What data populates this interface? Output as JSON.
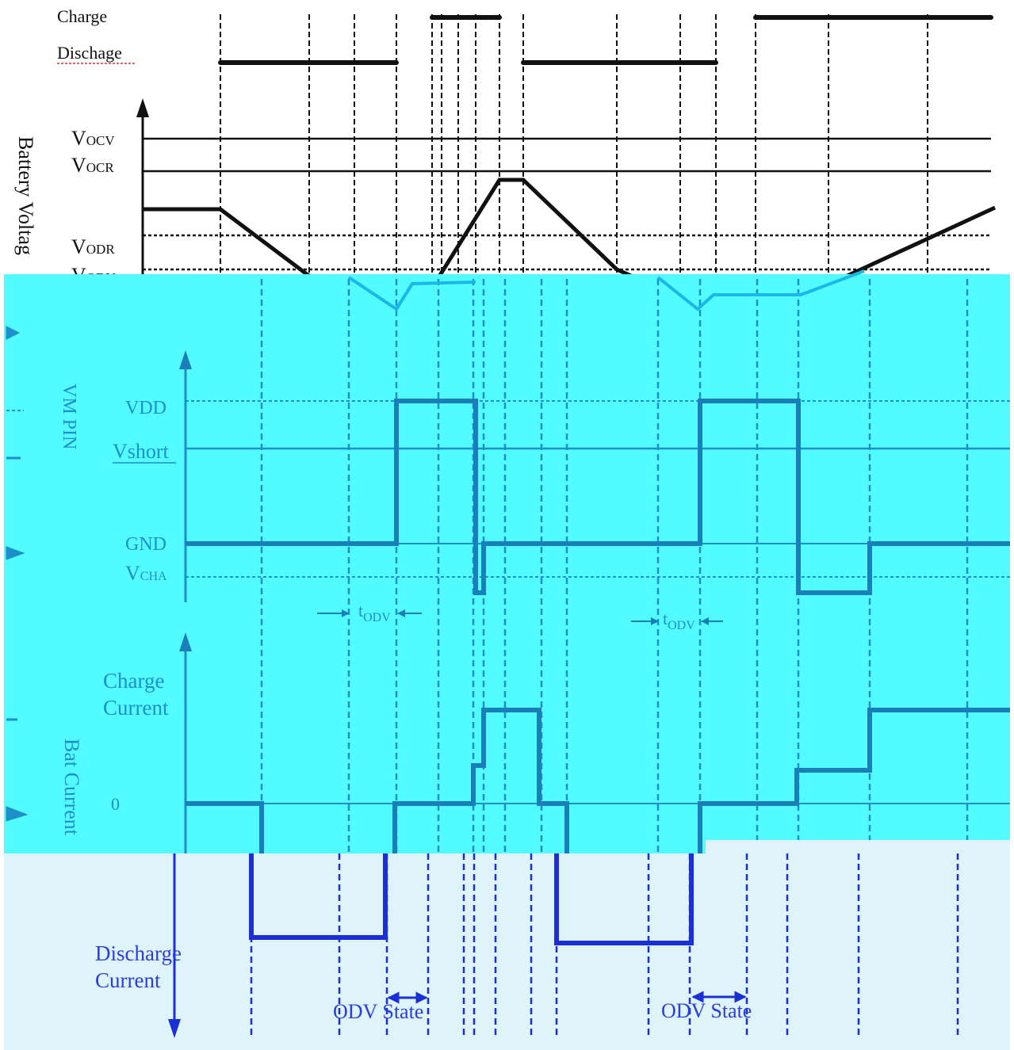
{
  "colors": {
    "top_background": "#ffffff",
    "top_ink": "#111111",
    "mid_background": "#52fbff",
    "mid_ink": "#1a7fb8",
    "mid_label": "#1e8fc8",
    "bottom_background": "#dff3fb",
    "bottom_ink": "#1a2fd6",
    "bottom_label": "#2a3ee0"
  },
  "top_panel": {
    "state_labels": {
      "charge": "Charge",
      "discharge": "Dischage"
    },
    "axis_label": "Battery Voltag",
    "levels": [
      {
        "name": "Vocv",
        "main": "V",
        "sub": "OCV"
      },
      {
        "name": "Vocr",
        "main": "V",
        "sub": "OCR"
      },
      {
        "name": "Vodr",
        "main": "V",
        "sub": "ODR"
      },
      {
        "name": "Vodv",
        "main": "V",
        "sub": "ODV"
      }
    ]
  },
  "mid_panel": {
    "axis_label": "VM PIN",
    "levels": [
      {
        "name": "VDD",
        "main": "VDD",
        "sub": ""
      },
      {
        "name": "Vshort",
        "main": "Vshort",
        "sub": ""
      },
      {
        "name": "GND",
        "main": "GND",
        "sub": ""
      },
      {
        "name": "Vcha",
        "main": "V",
        "sub": "CHA"
      }
    ],
    "delay_labels": [
      {
        "main": "t",
        "sub": "ODV"
      },
      {
        "main": "t",
        "sub": "ODV"
      }
    ],
    "charge_current_label": [
      "Charge",
      "Current"
    ],
    "bat_current_label": "Bat Current",
    "zero_label": "0"
  },
  "bottom_panel": {
    "discharge_current_label": [
      "Discharge",
      "Current"
    ],
    "state_labels": [
      "ODV State",
      "ODV State"
    ]
  }
}
